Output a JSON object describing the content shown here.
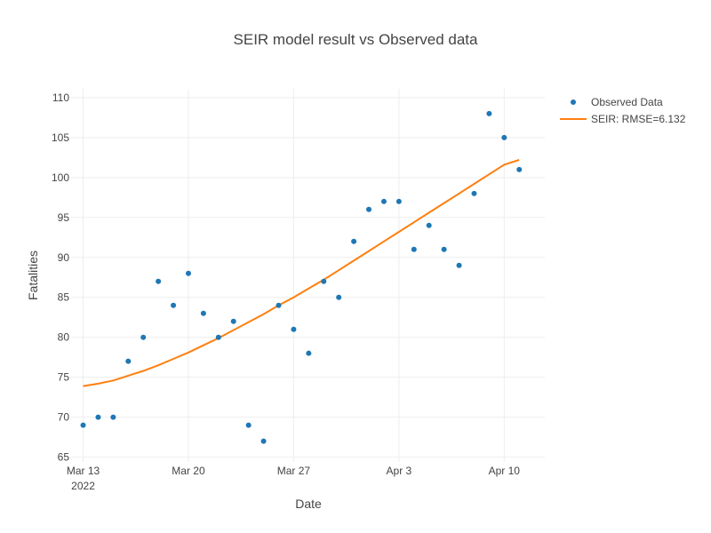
{
  "chart_data": {
    "type": "line",
    "title": "SEIR model result vs Observed data",
    "xlabel": "Date",
    "ylabel": "Fatalities",
    "ylim": [
      64.4,
      111.1
    ],
    "y_ticks": [
      65,
      70,
      75,
      80,
      85,
      90,
      95,
      100,
      105,
      110
    ],
    "x_range_days": [
      -0.8,
      30.7
    ],
    "x_ticks": [
      {
        "day": 0,
        "label": "Mar 13",
        "sublabel": "2022"
      },
      {
        "day": 7,
        "label": "Mar 20",
        "sublabel": ""
      },
      {
        "day": 14,
        "label": "Mar 27",
        "sublabel": ""
      },
      {
        "day": 21,
        "label": "Apr 3",
        "sublabel": ""
      },
      {
        "day": 28,
        "label": "Apr 10",
        "sublabel": ""
      }
    ],
    "grid": true,
    "legend_position": "top-right",
    "series": [
      {
        "name": "Observed Data",
        "kind": "scatter",
        "color": "#1f77b4",
        "x": [
          0,
          1,
          2,
          3,
          4,
          5,
          6,
          7,
          8,
          9,
          10,
          11,
          12,
          13,
          14,
          15,
          16,
          17,
          18,
          19,
          20,
          21,
          22,
          23,
          24,
          25,
          26,
          27,
          28,
          29
        ],
        "y": [
          69,
          70,
          70,
          77,
          80,
          87,
          84,
          88,
          83,
          80,
          82,
          69,
          67,
          84,
          81,
          78,
          87,
          85,
          92,
          96,
          97,
          97,
          91,
          94,
          91,
          89,
          98,
          108,
          105,
          101
        ]
      },
      {
        "name": "SEIR: RMSE=6.132",
        "kind": "line",
        "color": "#ff7f0e",
        "x": [
          0,
          1,
          2,
          3,
          4,
          5,
          6,
          7,
          8,
          9,
          10,
          11,
          12,
          13,
          14,
          15,
          16,
          17,
          18,
          19,
          20,
          21,
          22,
          23,
          24,
          25,
          26,
          27,
          28,
          29
        ],
        "y": [
          73.9,
          74.2,
          74.6,
          75.2,
          75.8,
          76.5,
          77.3,
          78.1,
          79.0,
          79.9,
          80.9,
          81.9,
          82.9,
          84.0,
          85.0,
          86.1,
          87.2,
          88.4,
          89.6,
          90.8,
          92.0,
          93.2,
          94.4,
          95.6,
          96.8,
          98.0,
          99.2,
          100.4,
          101.6,
          102.2
        ]
      }
    ]
  }
}
